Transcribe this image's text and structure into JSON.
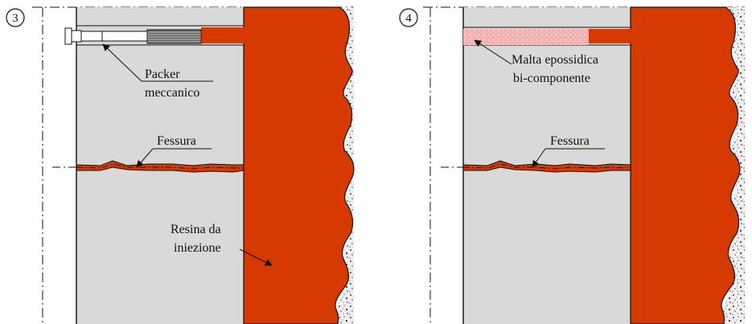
{
  "colors": {
    "background": "#ffffff",
    "concrete": "#d9d9d9",
    "resin": "#d63a00",
    "gravel": "#efefef",
    "mortar": "#f2a9a9",
    "line": "#111111"
  },
  "panels": [
    {
      "number": "3",
      "labels": {
        "packer_line1": "Packer",
        "packer_line2": "meccanico",
        "fessura": "Fessura",
        "resina_line1": "Resina da",
        "resina_line2": "iniezione"
      }
    },
    {
      "number": "4",
      "labels": {
        "malta_line1": "Malta epossidica",
        "malta_line2": "bi-componente",
        "fessura": "Fessura"
      }
    }
  ]
}
